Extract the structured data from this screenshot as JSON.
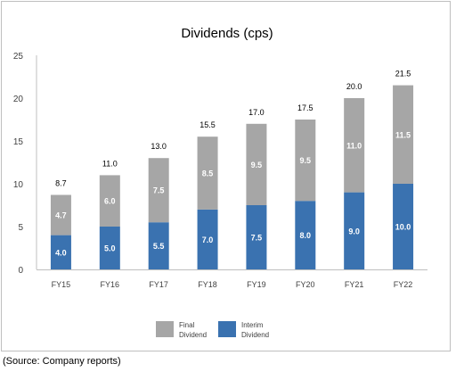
{
  "chart_data": {
    "type": "bar",
    "stacked": true,
    "title": "Dividends (cps)",
    "xlabel": "",
    "ylabel": "",
    "categories": [
      "FY15",
      "FY16",
      "FY17",
      "FY18",
      "FY19",
      "FY20",
      "FY21",
      "FY22"
    ],
    "series": [
      {
        "name": "Interim Dividend",
        "color": "#3a72b0",
        "values": [
          4.0,
          5.0,
          5.5,
          7.0,
          7.5,
          8.0,
          9.0,
          10.0
        ]
      },
      {
        "name": "Final Dividend",
        "color": "#a6a6a6",
        "values": [
          4.7,
          6.0,
          7.5,
          8.5,
          9.5,
          9.5,
          11.0,
          11.5
        ]
      }
    ],
    "totals": [
      8.7,
      11.0,
      13.0,
      15.5,
      17.0,
      17.5,
      20.0,
      21.5
    ],
    "ylim": [
      0,
      25
    ],
    "yticks": [
      0,
      5,
      10,
      15,
      20,
      25
    ],
    "grid": false,
    "legend_position": "bottom"
  },
  "legend": {
    "final_line1": "Final",
    "final_line2": "Dividend",
    "interim_line1": "Interim",
    "interim_line2": "Dividend"
  },
  "source_note": "(Source: Company reports)"
}
